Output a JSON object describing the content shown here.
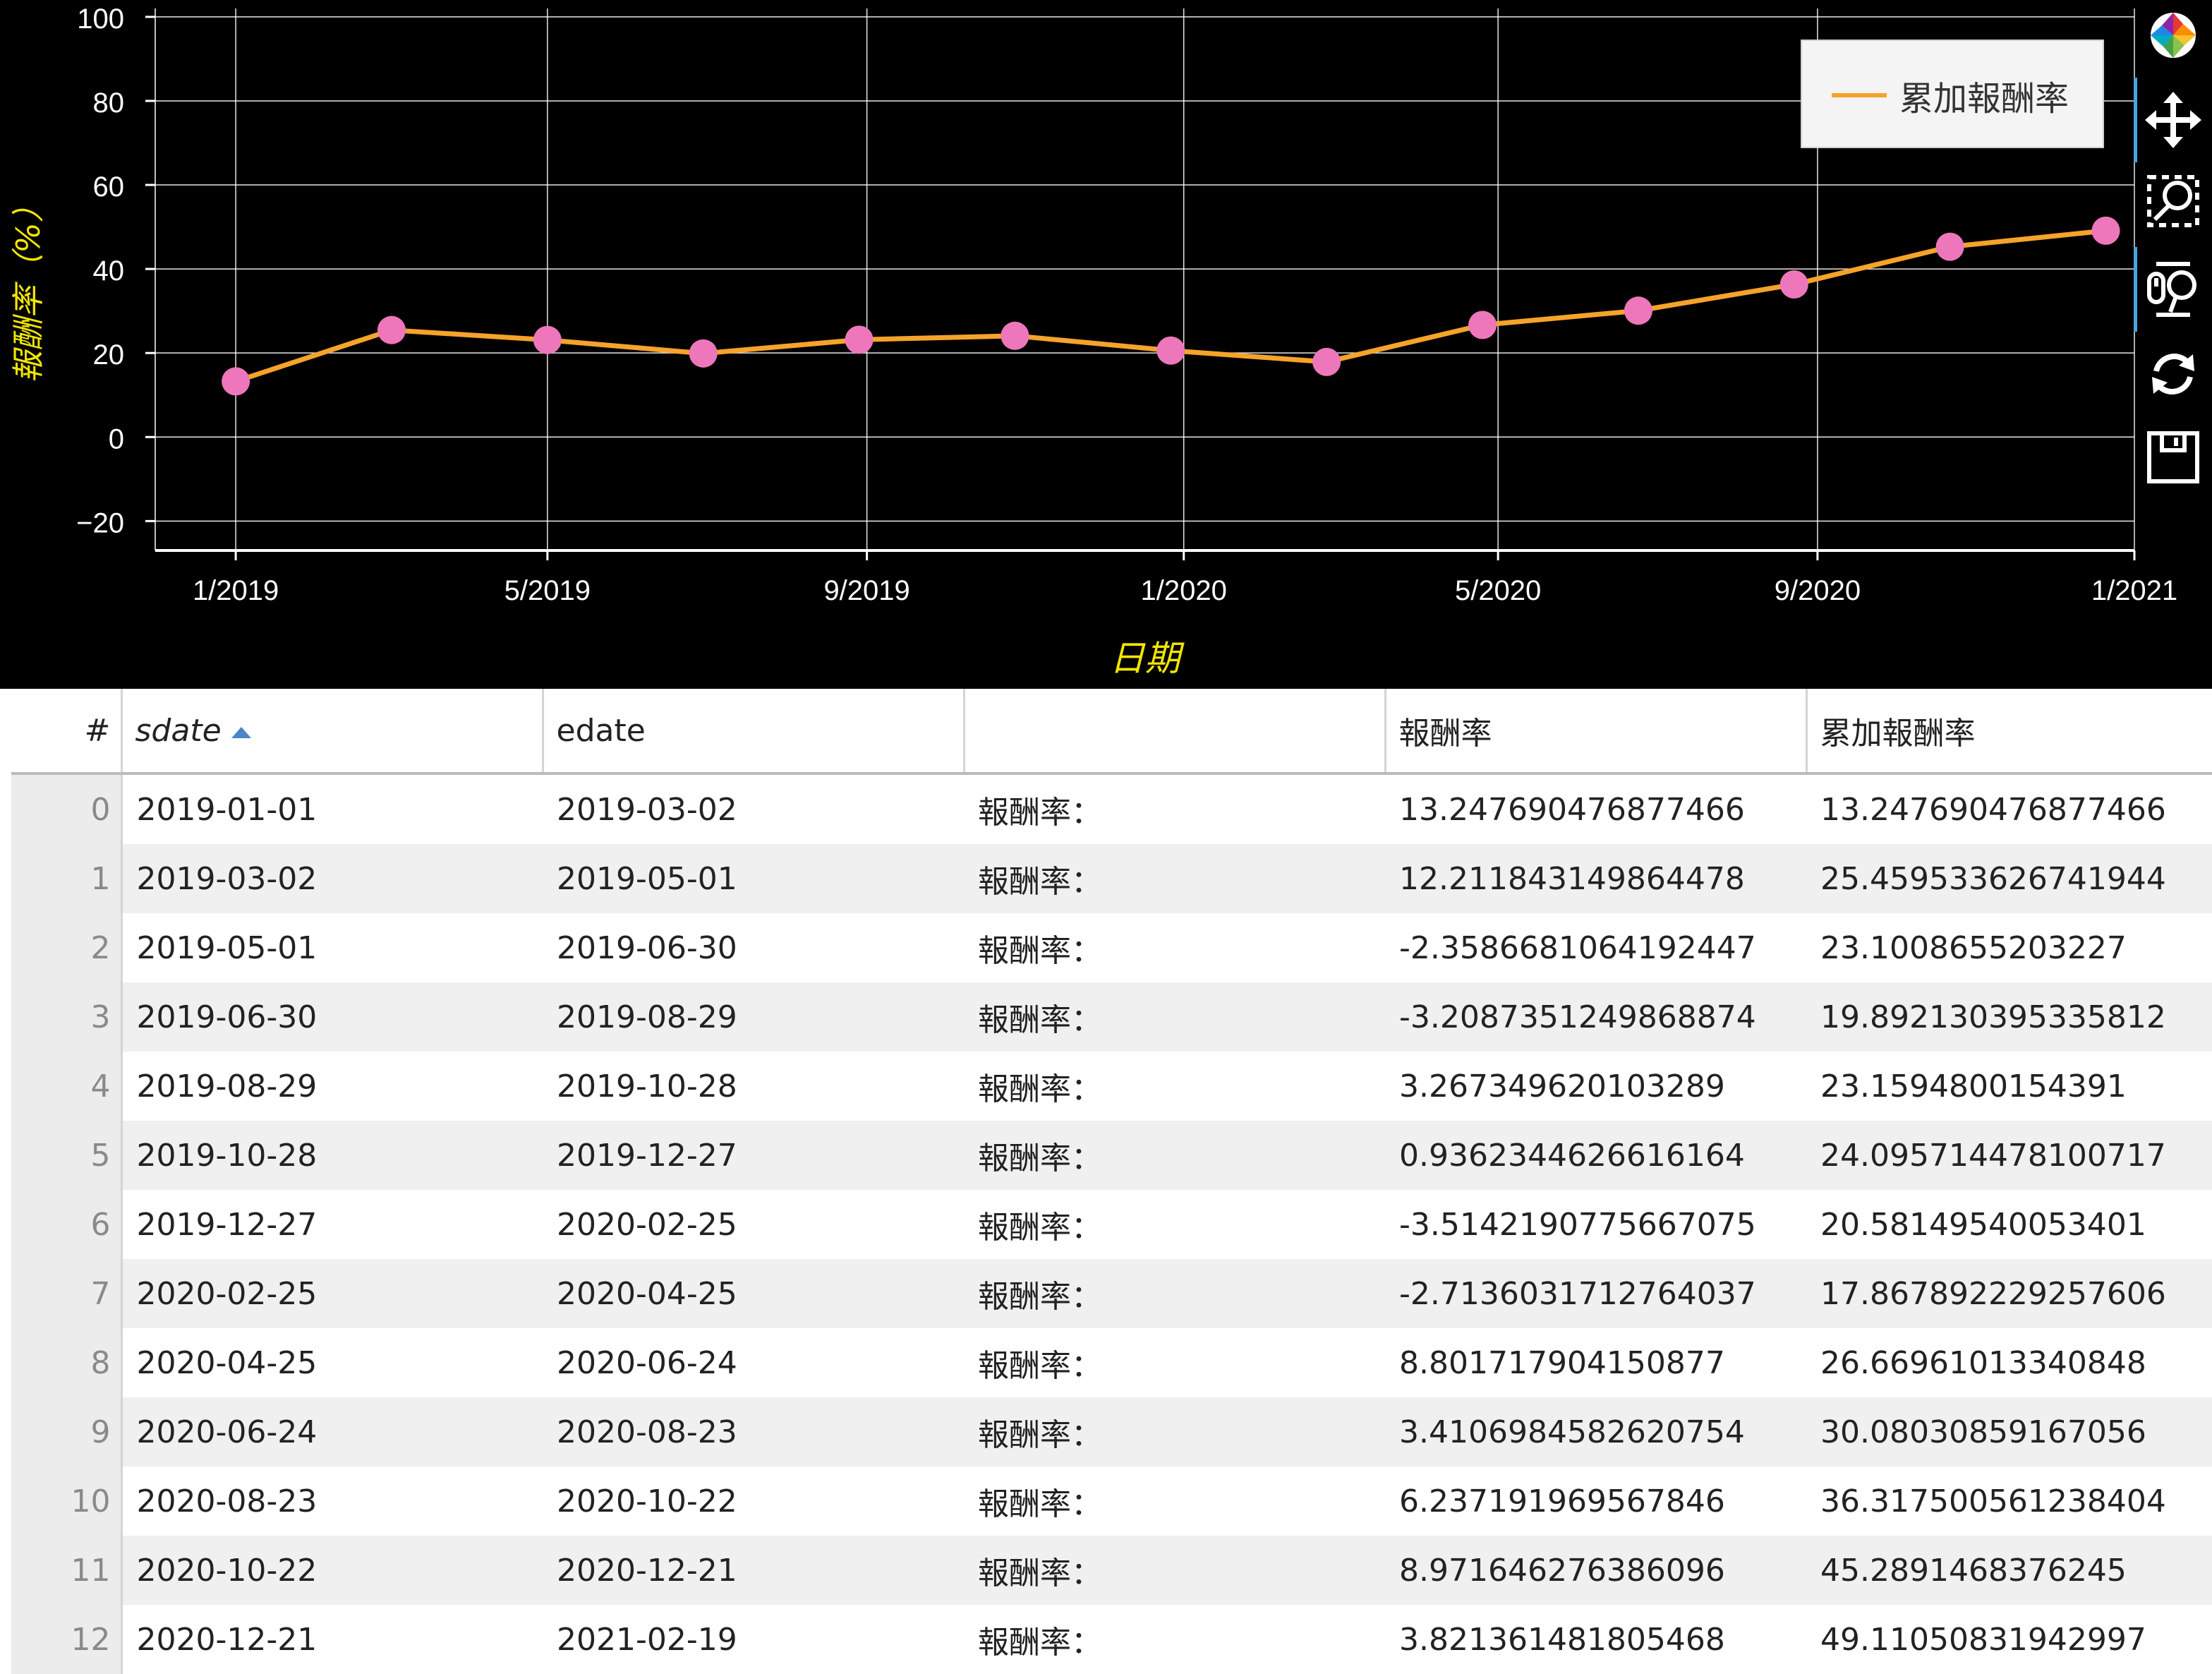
{
  "chart_data": {
    "type": "line",
    "xlabel": "日期",
    "ylabel": "報酬率（%）",
    "ylim": [
      -27,
      102
    ],
    "xlim": [
      "2018-12-01",
      "2021-01-01"
    ],
    "yticks": [
      -20,
      0,
      20,
      40,
      60,
      80,
      100
    ],
    "xticks": [
      {
        "date": "2019-01-01",
        "label": "1/2019"
      },
      {
        "date": "2019-05-01",
        "label": "5/2019"
      },
      {
        "date": "2019-09-01",
        "label": "9/2019"
      },
      {
        "date": "2020-01-01",
        "label": "1/2020"
      },
      {
        "date": "2020-05-01",
        "label": "5/2020"
      },
      {
        "date": "2020-09-01",
        "label": "9/2020"
      },
      {
        "date": "2021-01-01",
        "label": "1/2021"
      }
    ],
    "grid": true,
    "legend_position": "top-right",
    "series": [
      {
        "name": "累加報酬率",
        "line_color": "#f5a32a",
        "marker_color": "#ee77bb",
        "x": [
          "2019-01-01",
          "2019-03-02",
          "2019-05-01",
          "2019-06-30",
          "2019-08-29",
          "2019-10-28",
          "2019-12-27",
          "2020-02-25",
          "2020-04-25",
          "2020-06-24",
          "2020-08-23",
          "2020-10-22",
          "2020-12-21"
        ],
        "y": [
          13.247690476877466,
          25.459533626741944,
          23.1008655203227,
          19.892130395335812,
          23.1594800154391,
          24.095714478100717,
          20.58149540053401,
          17.867892229257606,
          26.66961013340848,
          30.08030859167056,
          36.317500561238404,
          45.2891468376245,
          49.11050831942997
        ]
      }
    ]
  },
  "toolbar": {
    "icons": [
      "bokeh-logo-icon",
      "pan-icon",
      "wheel-zoom-icon",
      "box-zoom-icon",
      "reset-icon",
      "save-icon"
    ]
  },
  "table": {
    "columns": [
      "#",
      "sdate",
      "edate",
      "",
      "報酬率",
      "累加報酬率"
    ],
    "sorted_column": "sdate",
    "rows": [
      [
        "0",
        "2019-01-01",
        "2019-03-02",
        "報酬率：",
        "13.247690476877466",
        "13.247690476877466"
      ],
      [
        "1",
        "2019-03-02",
        "2019-05-01",
        "報酬率：",
        "12.211843149864478",
        "25.459533626741944"
      ],
      [
        "2",
        "2019-05-01",
        "2019-06-30",
        "報酬率：",
        "-2.3586681064192447",
        "23.1008655203227"
      ],
      [
        "3",
        "2019-06-30",
        "2019-08-29",
        "報酬率：",
        "-3.2087351249868874",
        "19.892130395335812"
      ],
      [
        "4",
        "2019-08-29",
        "2019-10-28",
        "報酬率：",
        "3.267349620103289",
        "23.1594800154391"
      ],
      [
        "5",
        "2019-10-28",
        "2019-12-27",
        "報酬率：",
        "0.9362344626616164",
        "24.095714478100717"
      ],
      [
        "6",
        "2019-12-27",
        "2020-02-25",
        "報酬率：",
        "-3.5142190775667075",
        "20.58149540053401"
      ],
      [
        "7",
        "2020-02-25",
        "2020-04-25",
        "報酬率：",
        "-2.7136031712764037",
        "17.867892229257606"
      ],
      [
        "8",
        "2020-04-25",
        "2020-06-24",
        "報酬率：",
        "8.801717904150877",
        "26.66961013340848"
      ],
      [
        "9",
        "2020-06-24",
        "2020-08-23",
        "報酬率：",
        "3.4106984582620754",
        "30.08030859167056"
      ],
      [
        "10",
        "2020-08-23",
        "2020-10-22",
        "報酬率：",
        "6.237191969567846",
        "36.317500561238404"
      ],
      [
        "11",
        "2020-10-22",
        "2020-12-21",
        "報酬率：",
        "8.971646276386096",
        "45.2891468376245"
      ],
      [
        "12",
        "2020-12-21",
        "2021-02-19",
        "報酬率：",
        "3.821361481805468",
        "49.11050831942997"
      ]
    ]
  }
}
